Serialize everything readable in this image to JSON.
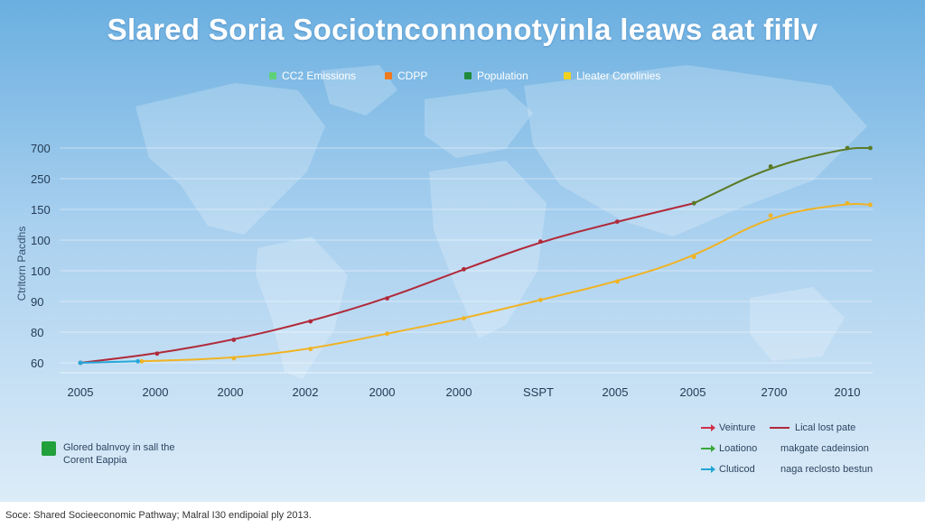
{
  "title": "Slared Soria Sociotnconnonotyinla leaws aat fiflv",
  "legend_top": [
    {
      "label": "CC2 Emissions",
      "color": "#5fd07a"
    },
    {
      "label": "CDPP",
      "color": "#f07a1e"
    },
    {
      "label": "Population",
      "color": "#1f8a3c"
    },
    {
      "label": "Lleater Corolinies",
      "color": "#f2d21c"
    }
  ],
  "y_axis_label": "Ctrltorn Pacdhs",
  "chart_data": {
    "type": "line",
    "title": "Slared Soria Sociotnconnonotyinla leaws aat fiflv",
    "ylabel": "Ctrltorn Pacdhs",
    "xlabel": "",
    "y_tick_labels": [
      "700",
      "250",
      "150",
      "100",
      "100",
      "90",
      "80",
      "60"
    ],
    "x_tick_labels": [
      "2005",
      "2000",
      "2000",
      "2002",
      "2000",
      "2000",
      "SSPT",
      "2005",
      "2005",
      "2700",
      "2010"
    ],
    "grid": true,
    "note": "y tick labels are non-monotonic; series values are expressed as positions on the printed tick scale (0 = bottom tick '60', 7 = top tick '700'); x as index of the 11 printed tick labels",
    "series": [
      {
        "name": "CC2 Emissions",
        "color": "#b02a3a",
        "x": [
          0,
          1,
          2,
          3,
          4,
          5,
          6,
          7,
          8
        ],
        "y": [
          0.0,
          0.3,
          0.75,
          1.35,
          2.1,
          3.05,
          3.95,
          4.6,
          5.2
        ]
      },
      {
        "name": "Population",
        "color": "#5b7a26",
        "x": [
          8,
          9,
          10,
          10.3
        ],
        "y": [
          5.2,
          6.4,
          7.0,
          7.0
        ]
      },
      {
        "name": "Lleater Corolinies",
        "color": "#f0b323",
        "x": [
          0.8,
          2,
          3,
          4,
          5,
          6,
          7,
          8,
          9,
          10,
          10.3
        ],
        "y": [
          0.05,
          0.15,
          0.45,
          0.95,
          1.45,
          2.05,
          2.65,
          3.45,
          4.8,
          5.2,
          5.15
        ]
      },
      {
        "name": "",
        "color": "#27a7d8",
        "x": [
          0,
          0.75
        ],
        "y": [
          0.0,
          0.05
        ]
      }
    ]
  },
  "bottom_note": {
    "line1": "Glored balnvoy in sall the",
    "line2": "Corent Eappia"
  },
  "bottom_legend": [
    {
      "marker": "arrow",
      "color": "#d03048",
      "label": "Veinture"
    },
    {
      "marker": "arrow",
      "color": "#3aa83c",
      "label": "Loationo"
    },
    {
      "marker": "arrow",
      "color": "#22a6d6",
      "label": "Cluticod"
    },
    {
      "marker": "line",
      "color": "#b02a3a",
      "label": "Lical lost pate"
    },
    {
      "marker": "none",
      "color": "",
      "label": "makgate cadeinsion"
    },
    {
      "marker": "none",
      "color": "",
      "label": "naga reclosto bestun"
    }
  ],
  "source": "Soce: Shared Socieeconomic Pathway; Malral I30 endipoial ply 2013."
}
